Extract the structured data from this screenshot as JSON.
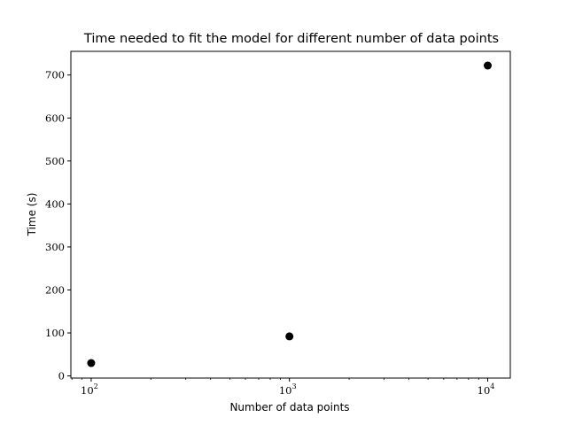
{
  "chart_data": {
    "type": "scatter",
    "title": "Time needed to fit the model for different number of data points",
    "xlabel": "Number of data points",
    "ylabel": "Time (s)",
    "x_scale": "log",
    "xlim": [
      79,
      13000
    ],
    "ylim": [
      -5,
      755
    ],
    "x_ticks": [
      {
        "value": 100,
        "base": "10",
        "exp": "2"
      },
      {
        "value": 1000,
        "base": "10",
        "exp": "3"
      },
      {
        "value": 10000,
        "base": "10",
        "exp": "4"
      }
    ],
    "y_ticks": [
      {
        "value": 0,
        "label": "0"
      },
      {
        "value": 100,
        "label": "100"
      },
      {
        "value": 200,
        "label": "200"
      },
      {
        "value": 300,
        "label": "300"
      },
      {
        "value": 400,
        "label": "400"
      },
      {
        "value": 500,
        "label": "500"
      },
      {
        "value": 600,
        "label": "600"
      },
      {
        "value": 700,
        "label": "700"
      }
    ],
    "grid": false,
    "marker_color": "#000000",
    "x": [
      100,
      1000,
      10000
    ],
    "y": [
      30,
      92,
      722
    ]
  }
}
